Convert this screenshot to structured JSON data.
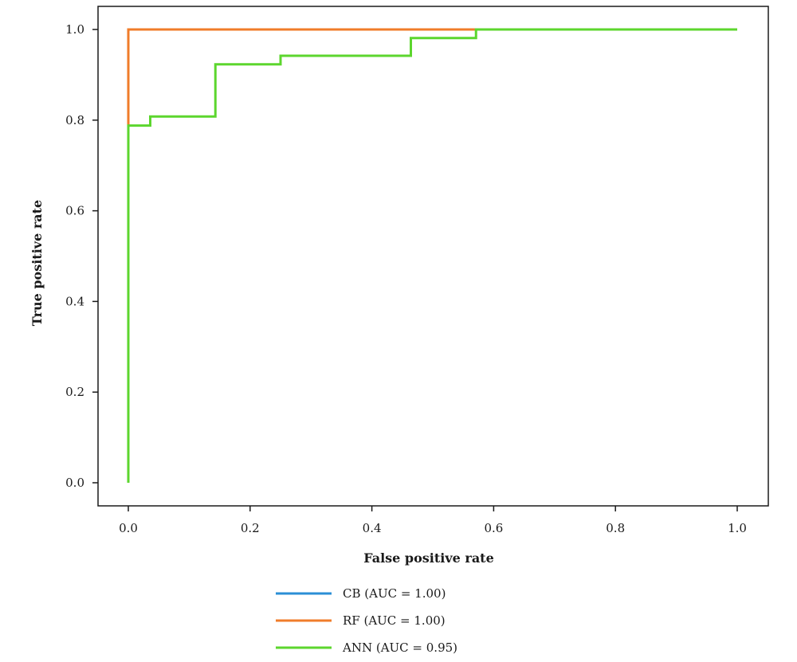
{
  "chart_data": {
    "type": "line",
    "title": "",
    "xlabel": "False positive rate",
    "ylabel": "True positive rate",
    "xlim": [
      -0.05,
      1.05
    ],
    "ylim": [
      -0.05,
      1.05
    ],
    "xticks": [
      0.0,
      0.2,
      0.4,
      0.6,
      0.8,
      1.0
    ],
    "yticks": [
      0.0,
      0.2,
      0.4,
      0.6,
      0.8,
      1.0
    ],
    "xtick_labels": [
      "0.0",
      "0.2",
      "0.4",
      "0.6",
      "0.8",
      "1.0"
    ],
    "ytick_labels": [
      "0.0",
      "0.2",
      "0.4",
      "0.6",
      "0.8",
      "1.0"
    ],
    "grid": false,
    "legend_position": "bottom",
    "series": [
      {
        "name": "CB (AUC = 1.00)",
        "color": "#2b8fd6",
        "step": true,
        "x": [
          0.0,
          0.0,
          0.571,
          1.0
        ],
        "y": [
          0.0,
          1.0,
          1.0,
          1.0
        ]
      },
      {
        "name": "RF (AUC = 1.00)",
        "color": "#f07c2a",
        "step": true,
        "x": [
          0.0,
          0.0,
          0.571
        ],
        "y": [
          0.79,
          1.0,
          1.0
        ]
      },
      {
        "name": "ANN (AUC = 0.95)",
        "color": "#5cd62e",
        "step": true,
        "x": [
          0.0,
          0.0,
          0.036,
          0.036,
          0.143,
          0.143,
          0.25,
          0.25,
          0.464,
          0.464,
          0.571,
          0.571,
          1.0
        ],
        "y": [
          0.0,
          0.788,
          0.788,
          0.808,
          0.808,
          0.923,
          0.923,
          0.942,
          0.942,
          0.981,
          0.981,
          1.0,
          1.0
        ]
      }
    ]
  }
}
